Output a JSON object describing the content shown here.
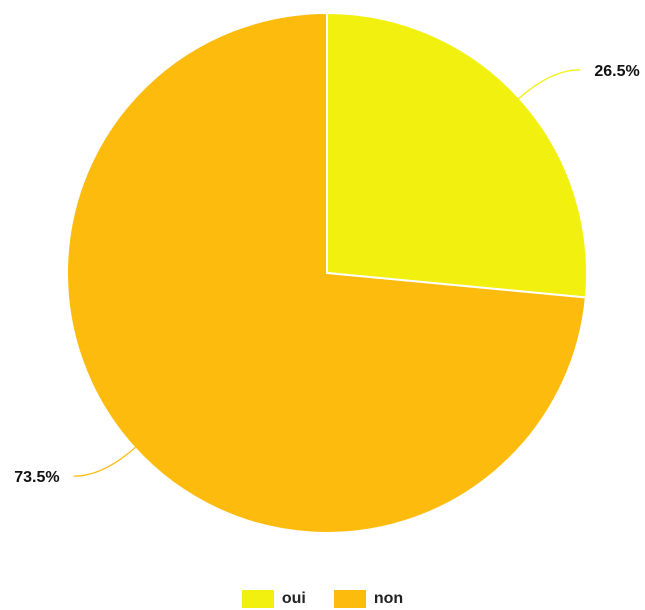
{
  "chart_data": {
    "type": "pie",
    "categories": [
      "oui",
      "non"
    ],
    "values": [
      26.5,
      73.5
    ],
    "labels": [
      "26.5%",
      "73.5%"
    ],
    "colors": [
      "#F2F00E",
      "#FDBB0E"
    ],
    "start_angle_deg": 0,
    "direction": "clockwise",
    "legend": "bottom"
  },
  "legend": {
    "items": [
      {
        "label": "oui",
        "color": "#F2F00E"
      },
      {
        "label": "non",
        "color": "#FDBB0E"
      }
    ]
  }
}
